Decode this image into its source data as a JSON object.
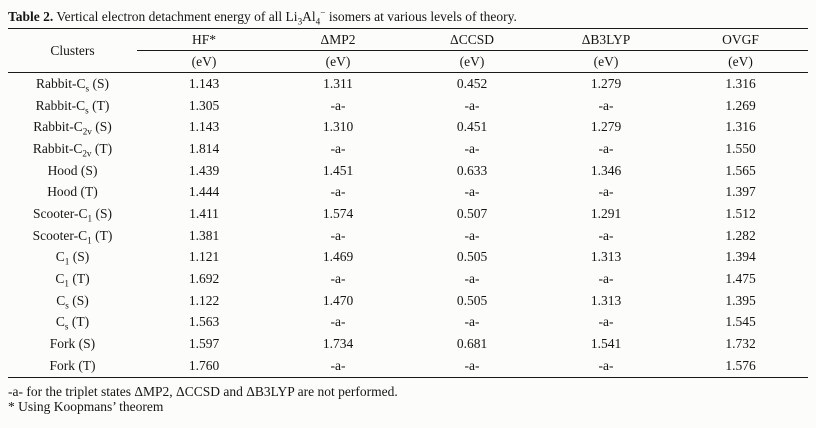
{
  "colors": {
    "background": "#fcfcfa",
    "ink": "#161616",
    "rule": "#1a1a1a"
  },
  "title": {
    "parts": [
      {
        "t": "Table 2.",
        "b": true
      },
      {
        "t": " Vertical electron detachment energy of all Li"
      },
      {
        "t": "3",
        "sub": true
      },
      {
        "t": "Al"
      },
      {
        "t": "4",
        "sub": true
      },
      {
        "t": "−",
        "sup": true
      },
      {
        "t": " isomers at various levels of theory."
      }
    ]
  },
  "table": {
    "header": {
      "clusters_label": "Clusters",
      "methods": [
        "HF*",
        "ΔMP2",
        "ΔCCSD",
        "ΔB3LYP",
        "OVGF"
      ],
      "unit": "(eV)"
    },
    "rows": [
      {
        "label_parts": [
          {
            "t": "Rabbit-C"
          },
          {
            "t": "s",
            "sub": true
          },
          {
            "t": " (S)"
          }
        ],
        "values": [
          "1.143",
          "1.311",
          "0.452",
          "1.279",
          "1.316"
        ]
      },
      {
        "label_parts": [
          {
            "t": "Rabbit-C"
          },
          {
            "t": "s",
            "sub": true
          },
          {
            "t": " (T)"
          }
        ],
        "values": [
          "1.305",
          "-a-",
          "-a-",
          "-a-",
          "1.269"
        ]
      },
      {
        "label_parts": [
          {
            "t": "Rabbit-C"
          },
          {
            "t": "2v",
            "sub": true
          },
          {
            "t": " (S)"
          }
        ],
        "values": [
          "1.143",
          "1.310",
          "0.451",
          "1.279",
          "1.316"
        ]
      },
      {
        "label_parts": [
          {
            "t": "Rabbit-C"
          },
          {
            "t": "2v",
            "sub": true
          },
          {
            "t": " (T)"
          }
        ],
        "values": [
          "1.814",
          "-a-",
          "-a-",
          "-a-",
          "1.550"
        ]
      },
      {
        "label_parts": [
          {
            "t": "Hood (S)"
          }
        ],
        "values": [
          "1.439",
          "1.451",
          "0.633",
          "1.346",
          "1.565"
        ]
      },
      {
        "label_parts": [
          {
            "t": "Hood (T)"
          }
        ],
        "values": [
          "1.444",
          "-a-",
          "-a-",
          "-a-",
          "1.397"
        ]
      },
      {
        "label_parts": [
          {
            "t": "Scooter-C"
          },
          {
            "t": "1",
            "sub": true
          },
          {
            "t": " (S)"
          }
        ],
        "values": [
          "1.411",
          "1.574",
          "0.507",
          "1.291",
          "1.512"
        ]
      },
      {
        "label_parts": [
          {
            "t": "Scooter-C"
          },
          {
            "t": "1",
            "sub": true
          },
          {
            "t": " (T)"
          }
        ],
        "values": [
          "1.381",
          "-a-",
          "-a-",
          "-a-",
          "1.282"
        ]
      },
      {
        "label_parts": [
          {
            "t": "C"
          },
          {
            "t": "1",
            "sub": true
          },
          {
            "t": " (S)"
          }
        ],
        "values": [
          "1.121",
          "1.469",
          "0.505",
          "1.313",
          "1.394"
        ]
      },
      {
        "label_parts": [
          {
            "t": "C"
          },
          {
            "t": "1",
            "sub": true
          },
          {
            "t": " (T)"
          }
        ],
        "values": [
          "1.692",
          "-a-",
          "-a-",
          "-a-",
          "1.475"
        ]
      },
      {
        "label_parts": [
          {
            "t": "C"
          },
          {
            "t": "s",
            "sub": true
          },
          {
            "t": " (S)"
          }
        ],
        "values": [
          "1.122",
          "1.470",
          "0.505",
          "1.313",
          "1.395"
        ]
      },
      {
        "label_parts": [
          {
            "t": "C"
          },
          {
            "t": "s",
            "sub": true
          },
          {
            "t": " (T)"
          }
        ],
        "values": [
          "1.563",
          "-a-",
          "-a-",
          "-a-",
          "1.545"
        ]
      },
      {
        "label_parts": [
          {
            "t": "Fork (S)"
          }
        ],
        "values": [
          "1.597",
          "1.734",
          "0.681",
          "1.541",
          "1.732"
        ]
      },
      {
        "label_parts": [
          {
            "t": "Fork (T)"
          }
        ],
        "values": [
          "1.760",
          "-a-",
          "-a-",
          "-a-",
          "1.576"
        ]
      }
    ]
  },
  "footnotes": [
    "-a- for the triplet states ΔMP2, ΔCCSD and ΔB3LYP are not performed.",
    "* Using Koopmans’ theorem"
  ]
}
